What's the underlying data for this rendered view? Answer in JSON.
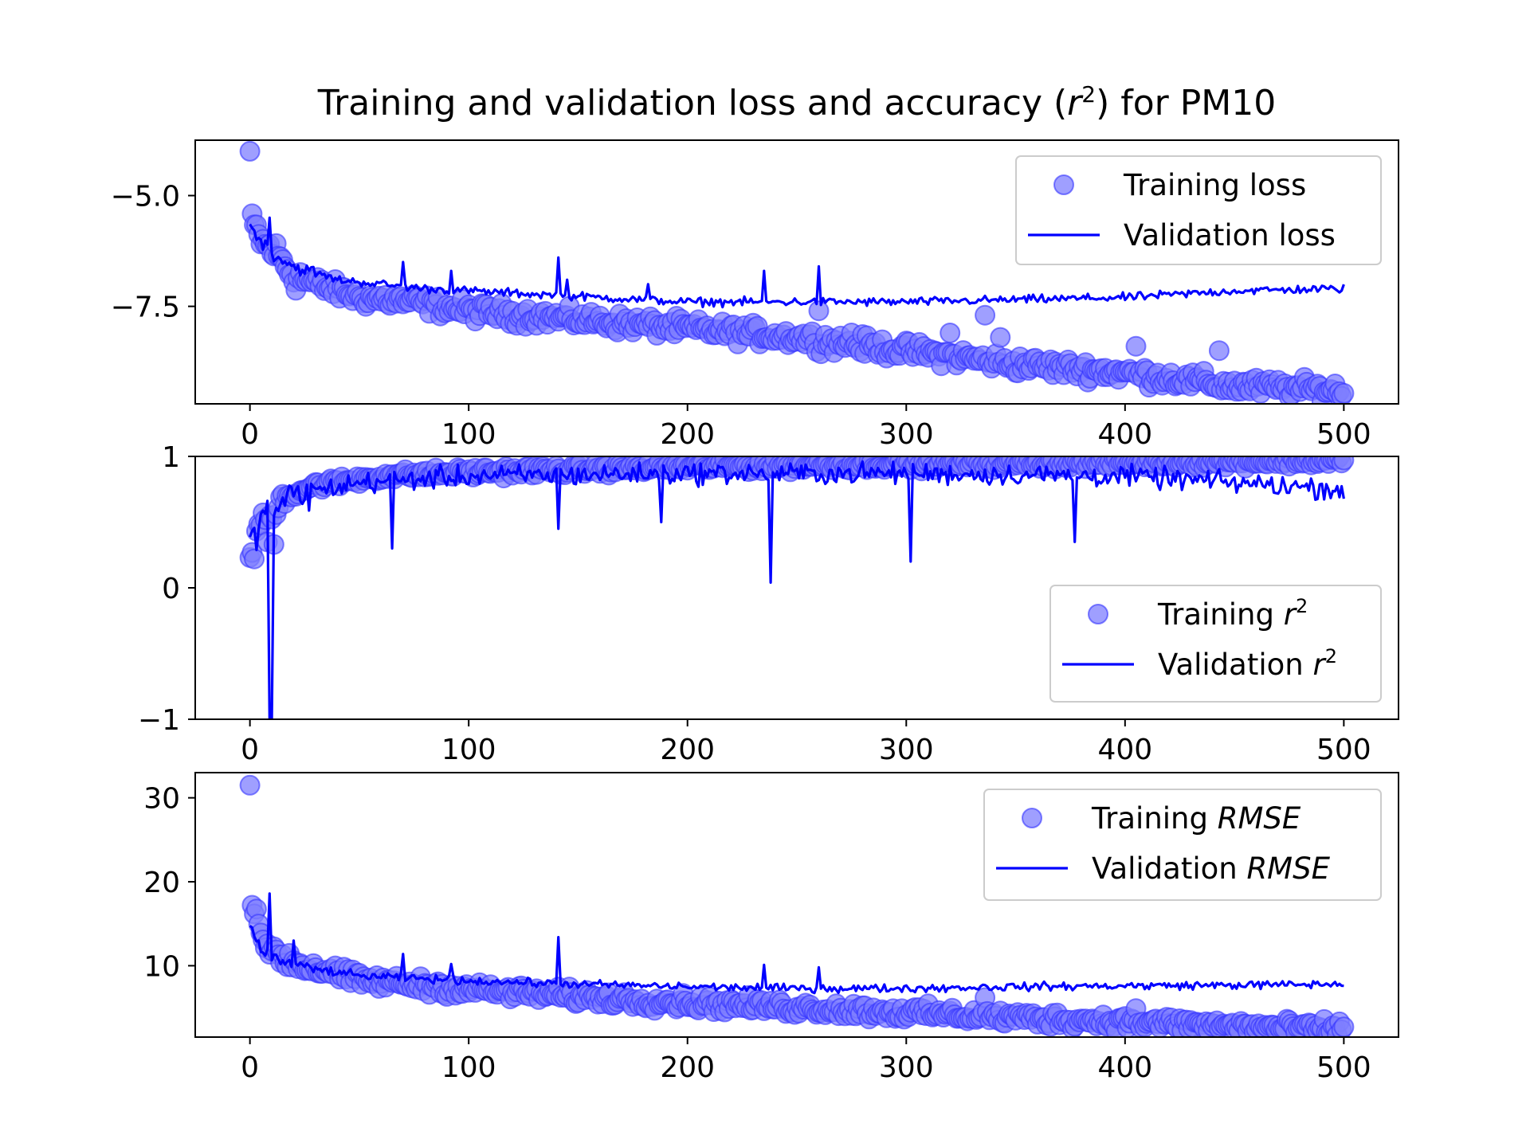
{
  "figure": {
    "title_main": "Training and validation loss and accuracy (",
    "title_var": "r",
    "title_sup": "2",
    "title_end": ") for PM10"
  },
  "colors": {
    "marker_fill": "#7f7fff",
    "marker_edge": "#3333ff",
    "line": "#0000ff"
  },
  "chart_data": [
    {
      "type": "scatter",
      "panel": "loss",
      "xlim": [
        -25,
        525
      ],
      "ylim": [
        -9.7,
        -3.75
      ],
      "xticks": [
        0,
        100,
        200,
        300,
        400,
        500
      ],
      "yticks": [
        -5.0,
        -7.5
      ],
      "ytick_labels": [
        "−5.0",
        "−7.5"
      ],
      "xtick_labels": [
        "0",
        "100",
        "200",
        "300",
        "400",
        "500"
      ],
      "legend_position": "upper right",
      "grid": false,
      "series": [
        {
          "name_plain": "Training loss",
          "style": "markers",
          "anchors": [
            [
              0,
              -4.0
            ],
            [
              1,
              -5.7
            ],
            [
              3,
              -5.8
            ],
            [
              6,
              -6.1
            ],
            [
              10,
              -6.2
            ],
            [
              15,
              -6.5
            ],
            [
              20,
              -6.8
            ],
            [
              30,
              -7.0
            ],
            [
              50,
              -7.3
            ],
            [
              75,
              -7.4
            ],
            [
              100,
              -7.6
            ],
            [
              150,
              -7.8
            ],
            [
              200,
              -8.0
            ],
            [
              250,
              -8.2
            ],
            [
              300,
              -8.5
            ],
            [
              350,
              -8.8
            ],
            [
              400,
              -9.0
            ],
            [
              450,
              -9.3
            ],
            [
              500,
              -9.4
            ]
          ],
          "outliers": [
            [
              0,
              -4.0
            ],
            [
              260,
              -7.6
            ],
            [
              336,
              -7.7
            ],
            [
              343,
              -8.2
            ],
            [
              405,
              -8.4
            ],
            [
              443,
              -8.5
            ],
            [
              320,
              -8.1
            ],
            [
              275,
              -8.1
            ]
          ],
          "noise": 0.16
        },
        {
          "name_plain": "Validation loss",
          "style": "line",
          "anchors": [
            [
              0,
              -5.7
            ],
            [
              5,
              -6.0
            ],
            [
              10,
              -6.3
            ],
            [
              20,
              -6.6
            ],
            [
              40,
              -6.9
            ],
            [
              80,
              -7.1
            ],
            [
              120,
              -7.2
            ],
            [
              160,
              -7.3
            ],
            [
              200,
              -7.4
            ],
            [
              250,
              -7.4
            ],
            [
              300,
              -7.4
            ],
            [
              350,
              -7.35
            ],
            [
              400,
              -7.3
            ],
            [
              450,
              -7.15
            ],
            [
              500,
              -7.1
            ]
          ],
          "spikes": [
            [
              9,
              -5.5
            ],
            [
              70,
              -6.5
            ],
            [
              92,
              -6.7
            ],
            [
              141,
              -6.4
            ],
            [
              235,
              -6.7
            ],
            [
              260,
              -6.6
            ],
            [
              145,
              -6.9
            ],
            [
              182,
              -7.0
            ]
          ],
          "noise": 0.07
        }
      ]
    },
    {
      "type": "scatter",
      "panel": "r2",
      "xlim": [
        -25,
        525
      ],
      "ylim": [
        -1.0,
        1.0
      ],
      "xticks": [
        0,
        100,
        200,
        300,
        400,
        500
      ],
      "yticks": [
        1,
        0,
        -1
      ],
      "ytick_labels": [
        "1",
        "0",
        "−1"
      ],
      "xtick_labels": [
        "0",
        "100",
        "200",
        "300",
        "400",
        "500"
      ],
      "legend_position": "lower right",
      "grid": false,
      "series": [
        {
          "name_plain": "Training",
          "name_var": "r",
          "name_sup": "2",
          "style": "markers",
          "anchors": [
            [
              0,
              0.22
            ],
            [
              2,
              0.4
            ],
            [
              5,
              0.5
            ],
            [
              10,
              0.55
            ],
            [
              15,
              0.7
            ],
            [
              30,
              0.78
            ],
            [
              60,
              0.85
            ],
            [
              100,
              0.88
            ],
            [
              200,
              0.92
            ],
            [
              300,
              0.94
            ],
            [
              400,
              0.95
            ],
            [
              500,
              0.97
            ]
          ],
          "outliers": [
            [
              2,
              0.22
            ],
            [
              11,
              0.33
            ],
            [
              8,
              0.35
            ]
          ],
          "noise": 0.03
        },
        {
          "name_plain": "Validation",
          "name_var": "r",
          "name_sup": "2",
          "style": "line",
          "anchors": [
            [
              0,
              0.3
            ],
            [
              5,
              0.55
            ],
            [
              10,
              0.6
            ],
            [
              20,
              0.7
            ],
            [
              50,
              0.8
            ],
            [
              100,
              0.85
            ],
            [
              200,
              0.87
            ],
            [
              300,
              0.87
            ],
            [
              400,
              0.85
            ],
            [
              500,
              0.75
            ]
          ],
          "spikes": [
            [
              9,
              -1.0
            ],
            [
              10,
              -1.0
            ],
            [
              65,
              0.3
            ],
            [
              141,
              0.45
            ],
            [
              238,
              0.04
            ],
            [
              302,
              0.2
            ],
            [
              377,
              0.35
            ],
            [
              188,
              0.5
            ]
          ],
          "noise": 0.06
        }
      ]
    },
    {
      "type": "scatter",
      "panel": "rmse",
      "xlim": [
        -25,
        525
      ],
      "ylim": [
        1.5,
        33
      ],
      "xticks": [
        0,
        100,
        200,
        300,
        400,
        500
      ],
      "yticks": [
        30,
        20,
        10
      ],
      "ytick_labels": [
        "30",
        "20",
        "10"
      ],
      "xtick_labels": [
        "0",
        "100",
        "200",
        "300",
        "400",
        "500"
      ],
      "legend_position": "upper right",
      "grid": false,
      "series": [
        {
          "name_plain": "Training",
          "name_var": "RMSE",
          "style": "markers",
          "anchors": [
            [
              0,
              31.5
            ],
            [
              1,
              17
            ],
            [
              3,
              15
            ],
            [
              6,
              13
            ],
            [
              10,
              12
            ],
            [
              15,
              11
            ],
            [
              25,
              10
            ],
            [
              50,
              8.3
            ],
            [
              100,
              7.2
            ],
            [
              150,
              6.3
            ],
            [
              200,
              5.6
            ],
            [
              250,
              5.0
            ],
            [
              300,
              4.4
            ],
            [
              350,
              3.8
            ],
            [
              400,
              3.3
            ],
            [
              450,
              2.8
            ],
            [
              500,
              2.4
            ]
          ],
          "outliers": [
            [
              0,
              31.5
            ],
            [
              1,
              17.2
            ],
            [
              336,
              6.2
            ],
            [
              405,
              4.9
            ]
          ],
          "noise": 0.7
        },
        {
          "name_plain": "Validation",
          "name_var": "RMSE",
          "style": "line",
          "anchors": [
            [
              0,
              15.0
            ],
            [
              5,
              12
            ],
            [
              10,
              11
            ],
            [
              20,
              10
            ],
            [
              50,
              8.8
            ],
            [
              100,
              8.2
            ],
            [
              150,
              7.8
            ],
            [
              200,
              7.5
            ],
            [
              250,
              7.3
            ],
            [
              300,
              7.3
            ],
            [
              350,
              7.5
            ],
            [
              400,
              7.6
            ],
            [
              450,
              7.7
            ],
            [
              500,
              7.8
            ]
          ],
          "spikes": [
            [
              9,
              18.6
            ],
            [
              20,
              13.0
            ],
            [
              70,
              11.4
            ],
            [
              92,
              10.2
            ],
            [
              141,
              13.4
            ],
            [
              235,
              10.1
            ],
            [
              260,
              9.8
            ]
          ],
          "noise": 0.35
        }
      ]
    }
  ]
}
